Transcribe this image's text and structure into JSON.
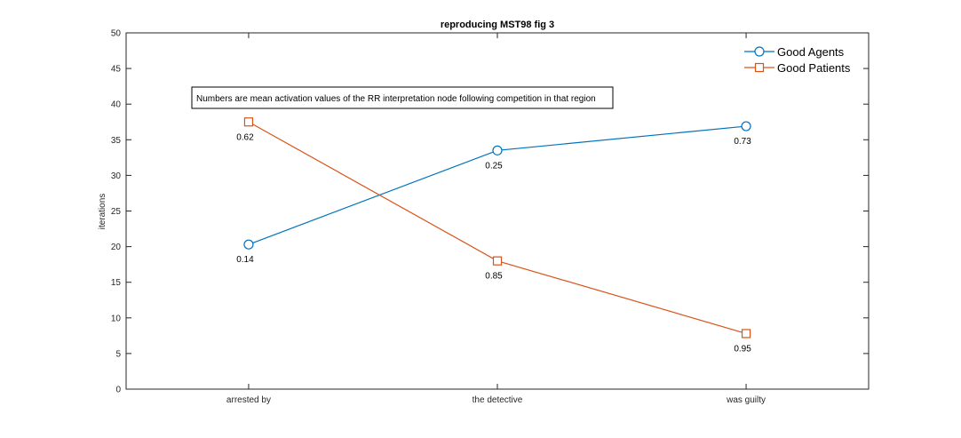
{
  "chart_data": {
    "type": "line",
    "title": "reproducing MST98 fig 3",
    "xlabel": "",
    "ylabel": "iterations",
    "categories": [
      "arrested by",
      "the detective",
      "was guilty"
    ],
    "ylim": [
      0,
      50
    ],
    "yticks": [
      0,
      5,
      10,
      15,
      20,
      25,
      30,
      35,
      40,
      45,
      50
    ],
    "grid": false,
    "legend_position": "top-right",
    "series": [
      {
        "name": "Good Agents",
        "values": [
          20.3,
          33.5,
          36.9
        ],
        "labels": [
          "0.14",
          "0.25",
          "0.73"
        ],
        "color": "#0072BD",
        "marker": "circle"
      },
      {
        "name": "Good Patients",
        "values": [
          37.5,
          18.0,
          7.8
        ],
        "labels": [
          "0.62",
          "0.85",
          "0.95"
        ],
        "color": "#D95319",
        "marker": "square"
      }
    ],
    "annotation": "Numbers are mean activation values of the RR interpretation node following competition in that region"
  }
}
